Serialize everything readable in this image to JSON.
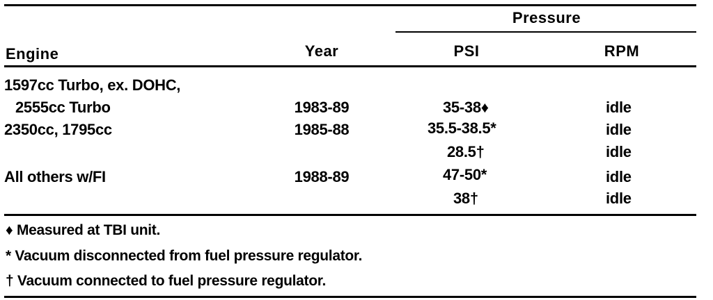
{
  "header": {
    "group_label": "Pressure",
    "col_engine": "Engine",
    "col_year": "Year",
    "col_psi": "PSI",
    "col_rpm": "RPM"
  },
  "rows": [
    {
      "engine": "1597cc Turbo, ex. DOHC,",
      "year": "",
      "psi": "",
      "rpm": ""
    },
    {
      "engine": "2555cc Turbo",
      "year": "1983-89",
      "psi": "35-38♦",
      "rpm": "idle"
    },
    {
      "engine": "2350cc, 1795cc",
      "year": "1985-88",
      "psi": "35.5-38.5*",
      "rpm": "idle"
    },
    {
      "engine": "",
      "year": "",
      "psi": "28.5†",
      "rpm": "idle"
    },
    {
      "engine": "All others w/FI",
      "year": "1988-89",
      "psi": "47-50*",
      "rpm": "idle"
    },
    {
      "engine": "",
      "year": "",
      "psi": "38†",
      "rpm": "idle"
    }
  ],
  "footnotes": [
    "♦ Measured at TBI unit.",
    "* Vacuum disconnected from fuel pressure regulator.",
    "† Vacuum connected to fuel pressure regulator."
  ]
}
